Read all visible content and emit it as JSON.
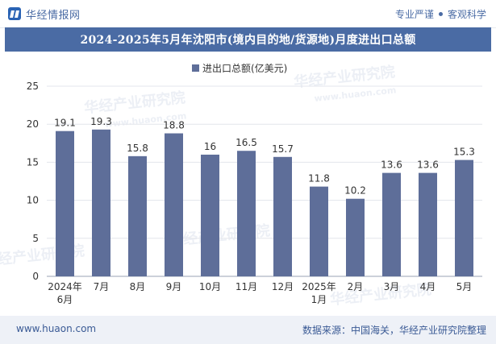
{
  "header": {
    "brand_name": "华经情报网",
    "tagline_left": "专业严谨",
    "tagline_right": "客观科学"
  },
  "chart_data": {
    "type": "bar",
    "title": "2024-2025年5月年沈阳市(境内目的地/货源地)月度进出口总额",
    "legend": "进出口总额(亿美元)",
    "categories": [
      [
        "2024年",
        "6月"
      ],
      [
        "7月"
      ],
      [
        "8月"
      ],
      [
        "9月"
      ],
      [
        "10月"
      ],
      [
        "11月"
      ],
      [
        "12月"
      ],
      [
        "2025年",
        "1月"
      ],
      [
        "2月"
      ],
      [
        "3月"
      ],
      [
        "4月"
      ],
      [
        "5月"
      ]
    ],
    "series": [
      {
        "name": "进出口总额(亿美元)",
        "values": [
          19.1,
          19.3,
          15.8,
          18.8,
          16,
          16.5,
          15.7,
          11.8,
          10.2,
          13.6,
          13.6,
          15.3
        ],
        "labels": [
          "19.1",
          "19.3",
          "15.8",
          "18.8",
          "16",
          "16.5",
          "15.7",
          "11.8",
          "10.2",
          "13.6",
          "13.6",
          "15.3"
        ]
      }
    ],
    "ylim": [
      0,
      25
    ],
    "yticks": [
      0,
      5,
      10,
      15,
      20,
      25
    ],
    "bar_color": "#5e6e99",
    "xlabel": "",
    "ylabel": ""
  },
  "watermark": {
    "text_cn": "华经产业研究院",
    "text_en": "www.huaon.com"
  },
  "footer": {
    "url": "www.huaon.com",
    "source": "数据来源：中国海关，华经产业研究院整理"
  }
}
